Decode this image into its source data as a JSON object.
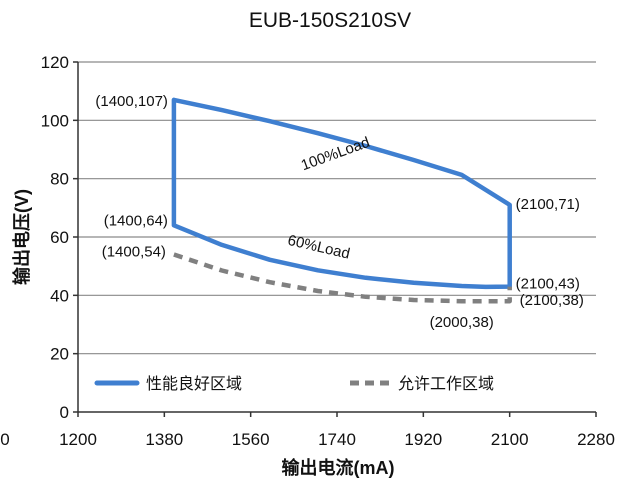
{
  "chart_data": {
    "type": "line",
    "title": "EUB-150S210SV",
    "xlabel": "输出电流(mA)",
    "ylabel": "输出电压(V)",
    "xlim": [
      1200,
      2280
    ],
    "ylim": [
      0,
      120
    ],
    "xticks": [
      1200,
      1380,
      1560,
      1740,
      1920,
      2100,
      2280
    ],
    "yticks": [
      0,
      20,
      40,
      60,
      80,
      100,
      120
    ],
    "extra_xtick_label": "0",
    "grid": "horizontal",
    "legend_position": "bottom",
    "colors": {
      "good": "#3f7fd0",
      "working": "#808080"
    },
    "series": [
      {
        "name": "性能良好区域",
        "style": "solid",
        "points": [
          [
            1400,
            107
          ],
          [
            1500,
            103.5
          ],
          [
            1600,
            99.7
          ],
          [
            1700,
            95.6
          ],
          [
            1800,
            91.2
          ],
          [
            1900,
            86.4
          ],
          [
            2000,
            81.3
          ],
          [
            2100,
            71
          ],
          [
            2100,
            43
          ],
          [
            2050,
            42.9
          ],
          [
            2000,
            43.2
          ],
          [
            1900,
            44.3
          ],
          [
            1800,
            46
          ],
          [
            1700,
            48.6
          ],
          [
            1600,
            52.2
          ],
          [
            1500,
            57.3
          ],
          [
            1400,
            64
          ],
          [
            1400,
            107
          ]
        ]
      },
      {
        "name": "允许工作区域",
        "style": "dashed",
        "points": [
          [
            1400,
            54
          ],
          [
            1500,
            48.5
          ],
          [
            1600,
            44.5
          ],
          [
            1700,
            41.5
          ],
          [
            1800,
            39.5
          ],
          [
            1900,
            38.4
          ],
          [
            2000,
            38
          ],
          [
            2100,
            38
          ],
          [
            2100,
            43
          ]
        ]
      }
    ],
    "line_labels": [
      {
        "text": "100%Load",
        "x": 1740,
        "y": 87,
        "rotate": -20
      },
      {
        "text": "60%Load",
        "x": 1700,
        "y": 55,
        "rotate": 13
      }
    ],
    "annotations": [
      {
        "text": "(1400,107)",
        "x": 1400,
        "y": 107,
        "anchor": "end",
        "dx": -6,
        "dy": 6
      },
      {
        "text": "(1400,64)",
        "x": 1400,
        "y": 64,
        "anchor": "end",
        "dx": -6,
        "dy": 0
      },
      {
        "text": "(1400,54)",
        "x": 1400,
        "y": 54,
        "anchor": "end",
        "dx": -8,
        "dy": 2
      },
      {
        "text": "(2100,71)",
        "x": 2100,
        "y": 71,
        "anchor": "start",
        "dx": 6,
        "dy": 4
      },
      {
        "text": "(2100,43)",
        "x": 2100,
        "y": 43,
        "anchor": "start",
        "dx": 6,
        "dy": 2
      },
      {
        "text": "(2100,38)",
        "x": 2100,
        "y": 38,
        "anchor": "start",
        "dx": 10,
        "dy": 4
      },
      {
        "text": "(2000,38)",
        "x": 2000,
        "y": 38,
        "anchor": "middle",
        "dx": 0,
        "dy": 26
      }
    ]
  }
}
